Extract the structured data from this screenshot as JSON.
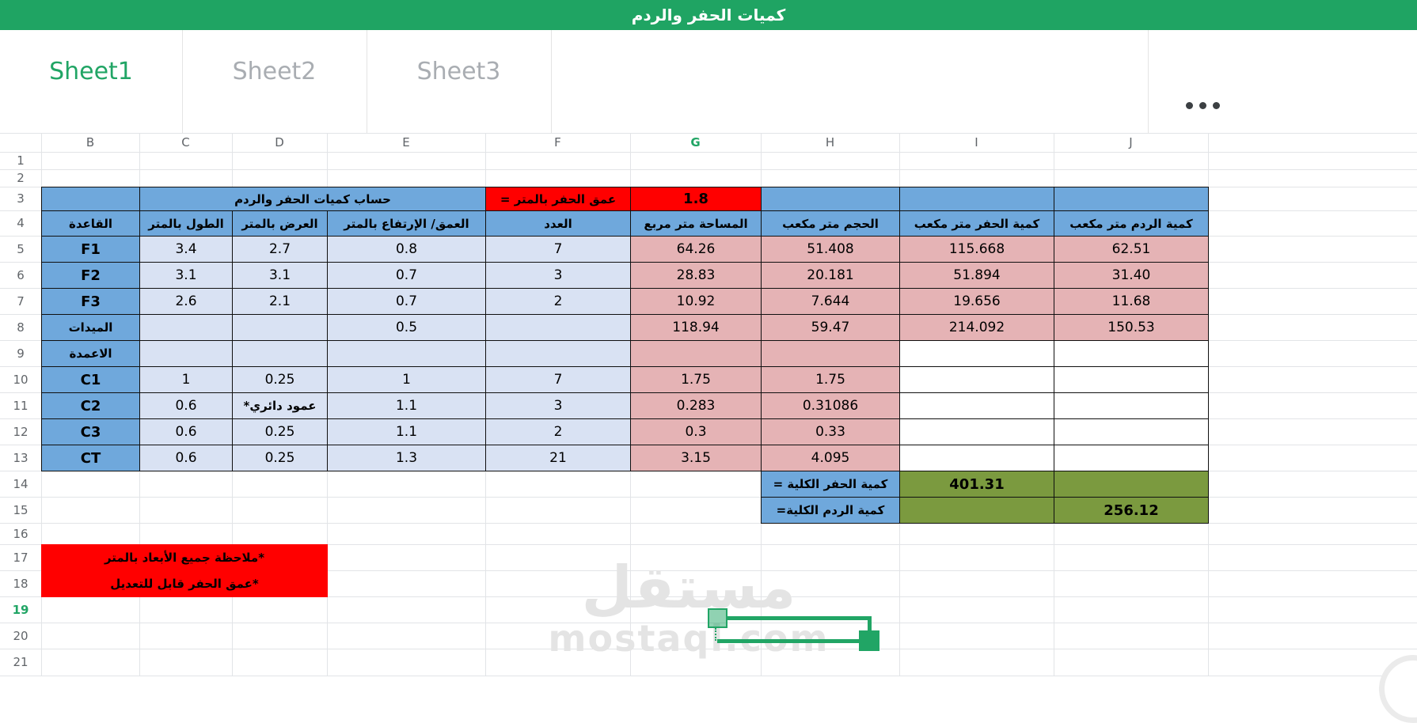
{
  "titlebar": {
    "title": "كميات الحفر والردم"
  },
  "tabbar": {
    "tabs": [
      {
        "label": "Sheet1",
        "active": true
      },
      {
        "label": "Sheet2",
        "active": false
      },
      {
        "label": "Sheet3",
        "active": false
      }
    ],
    "menu_icon": "more-options"
  },
  "grid": {
    "column_letters": [
      "B",
      "C",
      "D",
      "E",
      "F",
      "G",
      "H",
      "I",
      "J"
    ],
    "selected_column": "G",
    "row_numbers": [
      "1",
      "2",
      "3",
      "4",
      "5",
      "6",
      "7",
      "8",
      "9",
      "10",
      "11",
      "12",
      "13",
      "14",
      "15",
      "16",
      "17",
      "18",
      "19",
      "20",
      "21"
    ],
    "selected_row": "19"
  },
  "sheet_rows": [
    {
      "n": 3,
      "cells": [
        {
          "c": "B",
          "t": "",
          "k": "blue"
        },
        {
          "c": "C",
          "e": "E",
          "t": "حساب كميات الحفر والردم",
          "k": "blue"
        },
        {
          "c": "F",
          "t": "عمق الحفر بالمتر =",
          "k": "red"
        },
        {
          "c": "G",
          "t": "1.8",
          "k": "red"
        },
        {
          "c": "H",
          "t": "",
          "k": "blue"
        },
        {
          "c": "I",
          "t": "",
          "k": "blue"
        },
        {
          "c": "J",
          "t": "",
          "k": "blue"
        }
      ]
    },
    {
      "n": 4,
      "cells": [
        {
          "c": "B",
          "t": "القاعدة",
          "k": "blue"
        },
        {
          "c": "C",
          "t": "الطول بالمتر",
          "k": "blue"
        },
        {
          "c": "D",
          "t": "العرض بالمتر",
          "k": "blue"
        },
        {
          "c": "E",
          "t": "العمق/ الإرتفاع بالمتر",
          "k": "blue"
        },
        {
          "c": "F",
          "t": "العدد",
          "k": "blue"
        },
        {
          "c": "G",
          "t": "المساحة متر مربع",
          "k": "blue"
        },
        {
          "c": "H",
          "t": "الحجم متر مكعب",
          "k": "blue"
        },
        {
          "c": "I",
          "t": "كمية الحفر متر مكعب",
          "k": "blue"
        },
        {
          "c": "J",
          "t": "كمية الردم متر مكعب",
          "k": "blue"
        }
      ]
    },
    {
      "n": 5,
      "cells": [
        {
          "c": "B",
          "t": "F1",
          "k": "blue"
        },
        {
          "c": "C",
          "t": "3.4",
          "k": "light"
        },
        {
          "c": "D",
          "t": "2.7",
          "k": "light"
        },
        {
          "c": "E",
          "t": "0.8",
          "k": "light"
        },
        {
          "c": "F",
          "t": "7",
          "k": "light"
        },
        {
          "c": "G",
          "t": "64.26",
          "k": "pink"
        },
        {
          "c": "H",
          "t": "51.408",
          "k": "pink"
        },
        {
          "c": "I",
          "t": "115.668",
          "k": "pink"
        },
        {
          "c": "J",
          "t": "62.51",
          "k": "pink"
        }
      ]
    },
    {
      "n": 6,
      "cells": [
        {
          "c": "B",
          "t": "F2",
          "k": "blue"
        },
        {
          "c": "C",
          "t": "3.1",
          "k": "light"
        },
        {
          "c": "D",
          "t": "3.1",
          "k": "light"
        },
        {
          "c": "E",
          "t": "0.7",
          "k": "light"
        },
        {
          "c": "F",
          "t": "3",
          "k": "light"
        },
        {
          "c": "G",
          "t": "28.83",
          "k": "pink"
        },
        {
          "c": "H",
          "t": "20.181",
          "k": "pink"
        },
        {
          "c": "I",
          "t": "51.894",
          "k": "pink"
        },
        {
          "c": "J",
          "t": "31.40",
          "k": "pink"
        }
      ]
    },
    {
      "n": 7,
      "cells": [
        {
          "c": "B",
          "t": "F3",
          "k": "blue"
        },
        {
          "c": "C",
          "t": "2.6",
          "k": "light"
        },
        {
          "c": "D",
          "t": "2.1",
          "k": "light"
        },
        {
          "c": "E",
          "t": "0.7",
          "k": "light"
        },
        {
          "c": "F",
          "t": "2",
          "k": "light"
        },
        {
          "c": "G",
          "t": "10.92",
          "k": "pink"
        },
        {
          "c": "H",
          "t": "7.644",
          "k": "pink"
        },
        {
          "c": "I",
          "t": "19.656",
          "k": "pink"
        },
        {
          "c": "J",
          "t": "11.68",
          "k": "pink"
        }
      ]
    },
    {
      "n": 8,
      "cells": [
        {
          "c": "B",
          "t": "الميدات",
          "k": "blue"
        },
        {
          "c": "C",
          "t": "",
          "k": "light"
        },
        {
          "c": "D",
          "t": "",
          "k": "light"
        },
        {
          "c": "E",
          "t": "0.5",
          "k": "light"
        },
        {
          "c": "F",
          "t": "",
          "k": "light"
        },
        {
          "c": "G",
          "t": "118.94",
          "k": "pink"
        },
        {
          "c": "H",
          "t": "59.47",
          "k": "pink"
        },
        {
          "c": "I",
          "t": "214.092",
          "k": "pink"
        },
        {
          "c": "J",
          "t": "150.53",
          "k": "pink"
        }
      ]
    },
    {
      "n": 9,
      "cells": [
        {
          "c": "B",
          "t": "الاعمدة",
          "k": "blue"
        },
        {
          "c": "C",
          "t": "",
          "k": "light"
        },
        {
          "c": "D",
          "t": "",
          "k": "light"
        },
        {
          "c": "E",
          "t": "",
          "k": "light"
        },
        {
          "c": "F",
          "t": "",
          "k": "light"
        },
        {
          "c": "G",
          "t": "",
          "k": "pink"
        },
        {
          "c": "H",
          "t": "",
          "k": "pink"
        },
        {
          "c": "I",
          "t": "",
          "k": "white"
        },
        {
          "c": "J",
          "t": "",
          "k": "white"
        }
      ]
    },
    {
      "n": 10,
      "cells": [
        {
          "c": "B",
          "t": "C1",
          "k": "blue"
        },
        {
          "c": "C",
          "t": "1",
          "k": "light"
        },
        {
          "c": "D",
          "t": "0.25",
          "k": "light"
        },
        {
          "c": "E",
          "t": "1",
          "k": "light"
        },
        {
          "c": "F",
          "t": "7",
          "k": "light"
        },
        {
          "c": "G",
          "t": "1.75",
          "k": "pink"
        },
        {
          "c": "H",
          "t": "1.75",
          "k": "pink"
        },
        {
          "c": "I",
          "t": "",
          "k": "white"
        },
        {
          "c": "J",
          "t": "",
          "k": "white"
        }
      ]
    },
    {
      "n": 11,
      "cells": [
        {
          "c": "B",
          "t": "C2",
          "k": "blue"
        },
        {
          "c": "C",
          "t": "0.6",
          "k": "light"
        },
        {
          "c": "D",
          "t": "عمود دائري*",
          "k": "light"
        },
        {
          "c": "E",
          "t": "1.1",
          "k": "light"
        },
        {
          "c": "F",
          "t": "3",
          "k": "light"
        },
        {
          "c": "G",
          "t": "0.283",
          "k": "pink"
        },
        {
          "c": "H",
          "t": "0.31086",
          "k": "pink"
        },
        {
          "c": "I",
          "t": "",
          "k": "white"
        },
        {
          "c": "J",
          "t": "",
          "k": "white"
        }
      ]
    },
    {
      "n": 12,
      "cells": [
        {
          "c": "B",
          "t": "C3",
          "k": "blue"
        },
        {
          "c": "C",
          "t": "0.6",
          "k": "light"
        },
        {
          "c": "D",
          "t": "0.25",
          "k": "light"
        },
        {
          "c": "E",
          "t": "1.1",
          "k": "light"
        },
        {
          "c": "F",
          "t": "2",
          "k": "light"
        },
        {
          "c": "G",
          "t": "0.3",
          "k": "pink"
        },
        {
          "c": "H",
          "t": "0.33",
          "k": "pink"
        },
        {
          "c": "I",
          "t": "",
          "k": "white"
        },
        {
          "c": "J",
          "t": "",
          "k": "white"
        }
      ]
    },
    {
      "n": 13,
      "cells": [
        {
          "c": "B",
          "t": "CT",
          "k": "blue"
        },
        {
          "c": "C",
          "t": "0.6",
          "k": "light"
        },
        {
          "c": "D",
          "t": "0.25",
          "k": "light"
        },
        {
          "c": "E",
          "t": "1.3",
          "k": "light"
        },
        {
          "c": "F",
          "t": "21",
          "k": "light"
        },
        {
          "c": "G",
          "t": "3.15",
          "k": "pink"
        },
        {
          "c": "H",
          "t": "4.095",
          "k": "pink"
        },
        {
          "c": "I",
          "t": "",
          "k": "white"
        },
        {
          "c": "J",
          "t": "",
          "k": "white"
        }
      ]
    },
    {
      "n": 14,
      "cells": [
        {
          "c": "H",
          "t": "كمية الحفر الكلية =",
          "k": "blue"
        },
        {
          "c": "I",
          "t": "401.31",
          "k": "olive"
        },
        {
          "c": "J",
          "t": "",
          "k": "olive"
        }
      ]
    },
    {
      "n": 15,
      "cells": [
        {
          "c": "H",
          "t": "كمية الردم الكلية=",
          "k": "blue"
        },
        {
          "c": "I",
          "t": "",
          "k": "olive"
        },
        {
          "c": "J",
          "t": "256.12",
          "k": "olive"
        }
      ]
    },
    {
      "n": 17,
      "cells": [
        {
          "c": "B",
          "e": "D",
          "t": "*ملاحظة جميع الأبعاد بالمتر",
          "k": "note"
        }
      ]
    },
    {
      "n": 18,
      "cells": [
        {
          "c": "B",
          "e": "D",
          "t": "*عمق الحفر قابل للتعديل",
          "k": "note"
        }
      ]
    }
  ],
  "watermark": {
    "arabic": "مستقل",
    "latin": "mostaql.com"
  },
  "colors": {
    "header_green": "#1fa463",
    "accent_green": "#21a565",
    "cell_blue": "#6fa8dc",
    "cell_light_blue": "#d9e2f3",
    "cell_pink": "#e5b3b5",
    "cell_red": "#ff0000",
    "cell_olive": "#7b9a3f",
    "inactive_tab": "#a9adb2"
  }
}
